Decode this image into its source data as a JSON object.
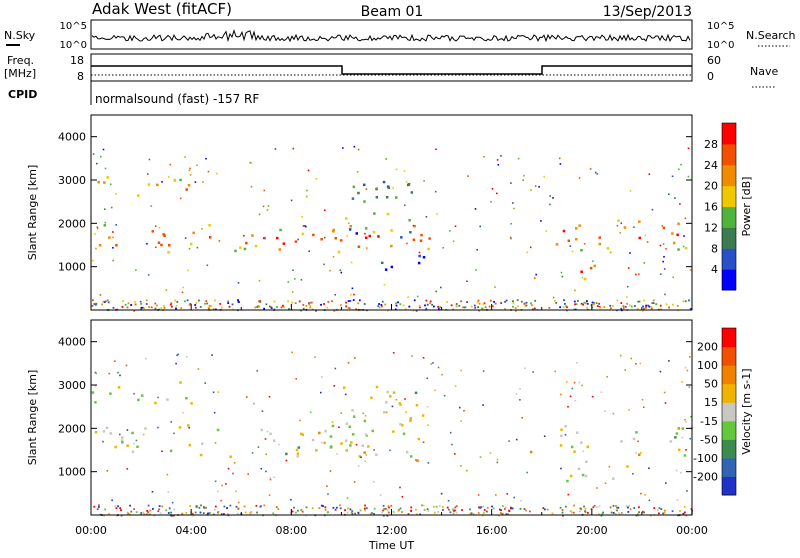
{
  "header": {
    "station": "Adak West (fitACF)",
    "beam": "Beam 01",
    "date": "13/Sep/2013"
  },
  "strip_labels": {
    "nsky": "N.Sky",
    "nsearch": "N.Search",
    "freq_line1": "Freq.",
    "freq_line2": "[MHz]",
    "nave": "Nave",
    "cpid": "CPID",
    "cpid_value": "normalsound (fast) -157 RF",
    "noise_top": "10^5",
    "noise_bottom": "10^0",
    "freq_top": "18",
    "freq_bottom": "8",
    "nave_top": "60",
    "nave_bottom": "0"
  },
  "chart_data": [
    {
      "type": "heatmap",
      "title": "",
      "ylabel": "Slant Range [km]",
      "xlabel": "",
      "xlim_hours": [
        0,
        24
      ],
      "ylim": [
        0,
        4500
      ],
      "yticks": [
        1000,
        2000,
        3000,
        4000
      ],
      "colorbar_label": "Power [dB]",
      "colorbar_ticks": [
        "4",
        "8",
        "12",
        "16",
        "20",
        "24",
        "28"
      ],
      "colorbar_colors": [
        "#0000ff",
        "#2850c8",
        "#3c7c50",
        "#50b43c",
        "#f0c800",
        "#f08c00",
        "#f05000",
        "#ff0000"
      ],
      "bands": [
        {
          "t0": 0,
          "t1": 13.5,
          "r0": 1350,
          "r1": 2000,
          "level": 0.85
        },
        {
          "t0": 0,
          "t1": 4,
          "r0": 2600,
          "r1": 3100,
          "level": 0.8
        },
        {
          "t0": 10,
          "t1": 13.3,
          "r0": 1700,
          "r1": 3000,
          "level": 0.55
        },
        {
          "t0": 11.5,
          "t1": 13.5,
          "r0": 900,
          "r1": 1400,
          "level": 0.2
        },
        {
          "t0": 18.5,
          "t1": 24,
          "r0": 1400,
          "r1": 2100,
          "level": 0.9
        },
        {
          "t0": 18.5,
          "t1": 20.5,
          "r0": 700,
          "r1": 1100,
          "level": 0.95
        }
      ]
    },
    {
      "type": "heatmap",
      "title": "",
      "ylabel": "Slant Range [km]",
      "xlabel": "Time UT",
      "xlim_hours": [
        0,
        24
      ],
      "ylim": [
        0,
        4500
      ],
      "yticks": [
        1000,
        2000,
        3000,
        4000
      ],
      "xticks": [
        "00:00",
        "04:00",
        "08:00",
        "12:00",
        "16:00",
        "20:00",
        "00:00"
      ],
      "colorbar_label": "Velocity [m s-1]",
      "colorbar_ticks": [
        "200",
        "100",
        "50",
        "15",
        "-15",
        "-50",
        "-100",
        "-200"
      ],
      "colorbar_colors": [
        "#1e32c8",
        "#3264b4",
        "#3c8c50",
        "#64c83c",
        "#c8c8c0",
        "#f0b400",
        "#f08200",
        "#f05000",
        "#ff0000"
      ],
      "bands": [
        {
          "t0": 0,
          "t1": 13.5,
          "r0": 1350,
          "r1": 2100,
          "level": 0.5
        },
        {
          "t0": 0,
          "t1": 4,
          "r0": 2600,
          "r1": 3100,
          "level": 0.5
        },
        {
          "t0": 10,
          "t1": 13.3,
          "r0": 1700,
          "r1": 3000,
          "level": 0.5
        },
        {
          "t0": 12.5,
          "t1": 13,
          "r0": 900,
          "r1": 1300,
          "level": 0.75
        },
        {
          "t0": 17.2,
          "t1": 17.6,
          "r0": 1300,
          "r1": 1900,
          "level": 0.8
        },
        {
          "t0": 18.5,
          "t1": 24,
          "r0": 1400,
          "r1": 2100,
          "level": 0.5
        },
        {
          "t0": 18.5,
          "t1": 21.5,
          "r0": 800,
          "r1": 1300,
          "level": 0.5
        }
      ]
    }
  ]
}
